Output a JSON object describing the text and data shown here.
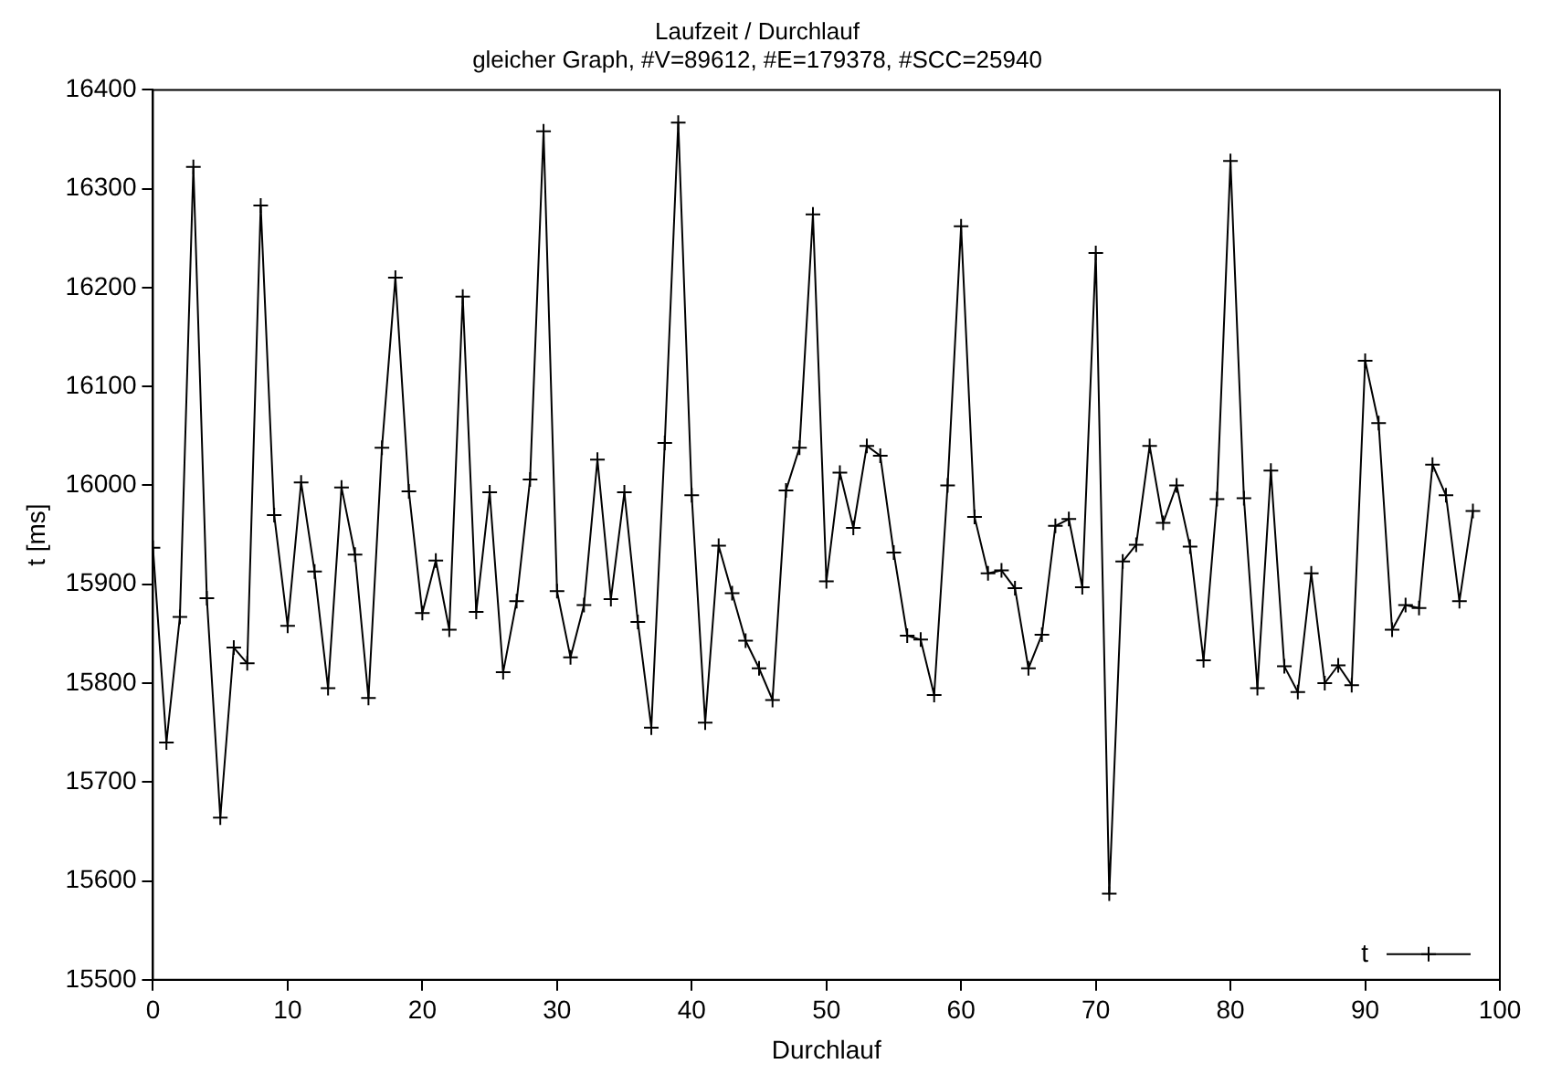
{
  "chart_data": {
    "type": "line",
    "title": "Laufzeit / Durchlauf",
    "subtitle": "gleicher Graph, #V=89612, #E=179378, #SCC=25940",
    "xlabel": "Durchlauf",
    "ylabel": "t [ms]",
    "x": [
      0,
      1,
      2,
      3,
      4,
      5,
      6,
      7,
      8,
      9,
      10,
      11,
      12,
      13,
      14,
      15,
      16,
      17,
      18,
      19,
      20,
      21,
      22,
      23,
      24,
      25,
      26,
      27,
      28,
      29,
      30,
      31,
      32,
      33,
      34,
      35,
      36,
      37,
      38,
      39,
      40,
      41,
      42,
      43,
      44,
      45,
      46,
      47,
      48,
      49,
      50,
      51,
      52,
      53,
      54,
      55,
      56,
      57,
      58,
      59,
      60,
      61,
      62,
      63,
      64,
      65,
      66,
      67,
      68,
      69,
      70,
      71,
      72,
      73,
      74,
      75,
      76,
      77,
      78,
      79,
      80,
      81,
      82,
      83,
      84,
      85,
      86,
      87,
      88,
      89,
      90,
      91,
      92,
      93,
      94,
      95,
      96,
      97,
      98
    ],
    "series": [
      {
        "name": "t",
        "color": "#000000",
        "values": [
          15937,
          15740,
          15867,
          16322,
          15886,
          15664,
          15836,
          15820,
          16283,
          15970,
          15858,
          16003,
          15913,
          15795,
          15998,
          15930,
          15785,
          16038,
          16210,
          15994,
          15871,
          15924,
          15854,
          16191,
          15872,
          15993,
          15811,
          15883,
          16006,
          16358,
          15893,
          15826,
          15879,
          16026,
          15885,
          15993,
          15862,
          15755,
          16043,
          16367,
          15990,
          15760,
          15939,
          15891,
          15843,
          15815,
          15783,
          15995,
          16038,
          16274,
          15903,
          16013,
          15957,
          16040,
          16030,
          15932,
          15848,
          15844,
          15788,
          16000,
          16262,
          15968,
          15911,
          15914,
          15896,
          15815,
          15849,
          15959,
          15966,
          15897,
          16235,
          15587,
          15923,
          15940,
          16040,
          15962,
          16000,
          15938,
          15823,
          15986,
          16328,
          15987,
          15795,
          16015,
          15817,
          15791,
          15911,
          15800,
          15818,
          15798,
          16126,
          16063,
          15854,
          15879,
          15876,
          16021,
          15990,
          15883,
          15974
        ]
      }
    ],
    "xlim": [
      0,
      100
    ],
    "xticks": [
      0,
      10,
      20,
      30,
      40,
      50,
      60,
      70,
      80,
      90,
      100
    ],
    "ylim": [
      15500,
      16400
    ],
    "yticks": [
      15500,
      15600,
      15700,
      15800,
      15900,
      16000,
      16100,
      16200,
      16300,
      16400
    ],
    "grid": false,
    "legend": "bottom right",
    "marker": "cross",
    "line_style": "solid"
  }
}
